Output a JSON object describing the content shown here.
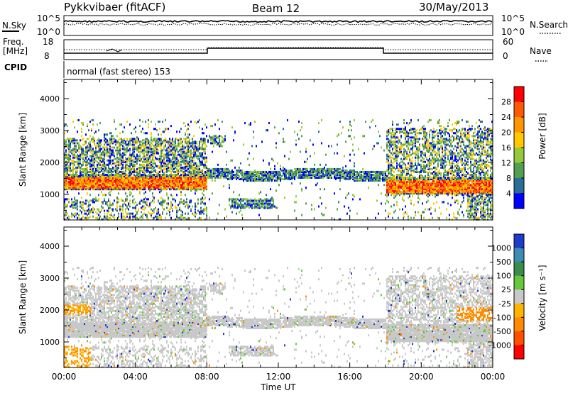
{
  "header": {
    "station": "Pykkvibaer (fitACF)",
    "beam": "Beam 12",
    "date": "30/May/2013"
  },
  "summary_panels": {
    "nsky_label": "N.Sky",
    "nsky_ticks": [
      "10^5",
      "10^0"
    ],
    "nsearch_label": "N.Search",
    "nsearch_ticks": [
      "10^5",
      "10^0"
    ],
    "freq_label_1": "Freq.",
    "freq_label_2": "[MHz]",
    "freq_ticks": [
      "18",
      "8"
    ],
    "nave_label": "Nave",
    "nave_ticks": [
      "60",
      "0"
    ],
    "cpid_label": "CPID",
    "cpid_value": "normal (fast stereo) 153"
  },
  "chart_data": [
    {
      "type": "heatmap",
      "name": "power",
      "ylabel": "Slant Range [km]",
      "yticks": [
        "4000",
        "3000",
        "2000",
        "1000"
      ],
      "ylim": [
        200,
        4600
      ],
      "colorbar_label": "Power [dB]",
      "colorbar_ticks": [
        "28",
        "24",
        "20",
        "16",
        "12",
        "8",
        "4"
      ],
      "colorbar_colors": [
        "#ff0000",
        "#ff5a00",
        "#ff9600",
        "#ffc800",
        "#96c83c",
        "#50a050",
        "#286e96",
        "#0000ff"
      ]
    },
    {
      "type": "heatmap",
      "name": "velocity",
      "ylabel": "Slant Range [km]",
      "yticks": [
        "4000",
        "3000",
        "2000",
        "1000"
      ],
      "ylim": [
        200,
        4600
      ],
      "colorbar_label": "Velocity [m s⁻¹]",
      "colorbar_ticks": [
        "1000",
        "500",
        "100",
        "25",
        "-25",
        "-100",
        "-500",
        "-1000"
      ],
      "colorbar_colors": [
        "#1e3cc8",
        "#3c8cb4",
        "#3c8c50",
        "#64c83c",
        "#c8c8c8",
        "#ffb400",
        "#ff8c00",
        "#ff5000",
        "#ff0000"
      ]
    }
  ],
  "time_axis": {
    "label": "Time UT",
    "ticks": [
      "00:00",
      "04:00",
      "08:00",
      "12:00",
      "16:00",
      "20:00",
      "00:00"
    ]
  }
}
